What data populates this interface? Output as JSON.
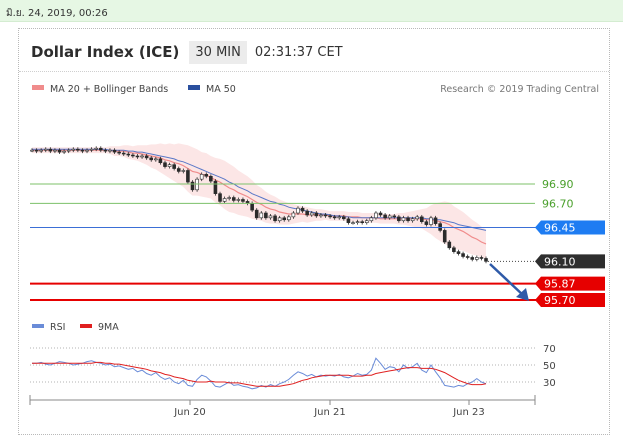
{
  "topbar": {
    "date": "มิ.ย. 24, 2019, 00:26"
  },
  "header": {
    "title": "Dollar Index (ICE)",
    "timeframe": "30 MIN",
    "clock": "02:31:37 CET"
  },
  "legend": {
    "ma20": "MA 20 + Bollinger Bands",
    "ma50": "MA 50",
    "credit": "Research © 2019 Trading Central"
  },
  "rsi_legend": {
    "rsi": "RSI",
    "ma9": "9MA"
  },
  "colors": {
    "ma20": "#f08c8c",
    "ma50": "#5a78c8",
    "rsi": "#6a8cd8",
    "ma9": "#e02020",
    "resistance": "#7cc16a",
    "support": "#e60000",
    "pivot": "#3b6fd6",
    "candle": "#2a2a2a"
  },
  "chart_data": [
    {
      "type": "candlestick",
      "x_ticks": [
        "Jun 20",
        "Jun 21",
        "Jun 23"
      ],
      "ylim": [
        95.55,
        97.45
      ],
      "levels": [
        {
          "value": 96.9,
          "label": "96.90",
          "kind": "resistance"
        },
        {
          "value": 96.7,
          "label": "96.70",
          "kind": "resistance"
        },
        {
          "value": 96.45,
          "label": "96.45",
          "kind": "pivot"
        },
        {
          "value": 96.1,
          "label": "96.10",
          "kind": "last"
        },
        {
          "value": 95.87,
          "label": "95.87",
          "kind": "support"
        },
        {
          "value": 95.7,
          "label": "95.70",
          "kind": "support"
        }
      ],
      "close": [
        97.25,
        97.24,
        97.25,
        97.26,
        97.24,
        97.25,
        97.23,
        97.24,
        97.25,
        97.26,
        97.25,
        97.24,
        97.25,
        97.26,
        97.27,
        97.25,
        97.24,
        97.25,
        97.23,
        97.22,
        97.21,
        97.2,
        97.19,
        97.18,
        97.19,
        97.17,
        97.15,
        97.16,
        97.12,
        97.08,
        97.1,
        97.06,
        97.03,
        97.04,
        96.92,
        96.84,
        96.95,
        97.0,
        96.98,
        96.93,
        96.8,
        96.72,
        96.75,
        96.76,
        96.73,
        96.74,
        96.72,
        96.7,
        96.63,
        96.55,
        96.6,
        96.55,
        96.57,
        96.52,
        96.55,
        96.53,
        96.56,
        96.6,
        96.65,
        96.62,
        96.58,
        96.6,
        96.57,
        96.58,
        96.57,
        96.56,
        96.55,
        96.56,
        96.54,
        96.5,
        96.5,
        96.51,
        96.5,
        96.52,
        96.55,
        96.6,
        96.58,
        96.55,
        96.57,
        96.56,
        96.52,
        96.55,
        96.52,
        96.54,
        96.56,
        96.51,
        96.48,
        96.55,
        96.49,
        96.42,
        96.3,
        96.24,
        96.2,
        96.18,
        96.15,
        96.14,
        96.12,
        96.14,
        96.13,
        96.1
      ],
      "ma20": [
        97.25,
        97.25,
        97.25,
        97.25,
        97.25,
        97.25,
        97.25,
        97.25,
        97.25,
        97.25,
        97.25,
        97.25,
        97.25,
        97.25,
        97.25,
        97.25,
        97.25,
        97.25,
        97.24,
        97.24,
        97.24,
        97.23,
        97.22,
        97.22,
        97.21,
        97.2,
        97.19,
        97.18,
        97.17,
        97.15,
        97.14,
        97.12,
        97.11,
        97.09,
        97.06,
        97.03,
        97.02,
        97.0,
        96.99,
        96.97,
        96.94,
        96.92,
        96.89,
        96.86,
        96.84,
        96.81,
        96.79,
        96.77,
        96.74,
        96.71,
        96.69,
        96.66,
        96.64,
        96.63,
        96.61,
        96.6,
        96.59,
        96.59,
        96.59,
        96.59,
        96.58,
        96.58,
        96.58,
        96.58,
        96.58,
        96.57,
        96.57,
        96.57,
        96.57,
        96.56,
        96.56,
        96.56,
        96.55,
        96.55,
        96.55,
        96.55,
        96.54,
        96.54,
        96.54,
        96.54,
        96.54,
        96.54,
        96.54,
        96.54,
        96.54,
        96.54,
        96.53,
        96.53,
        96.52,
        96.51,
        96.5,
        96.48,
        96.45,
        96.43,
        96.41,
        96.38,
        96.35,
        96.33,
        96.3,
        96.28
      ],
      "ma50": [
        97.26,
        97.26,
        97.26,
        97.26,
        97.26,
        97.26,
        97.26,
        97.26,
        97.26,
        97.26,
        97.26,
        97.26,
        97.26,
        97.26,
        97.26,
        97.26,
        97.26,
        97.25,
        97.25,
        97.25,
        97.25,
        97.24,
        97.24,
        97.23,
        97.23,
        97.22,
        97.21,
        97.2,
        97.19,
        97.18,
        97.17,
        97.16,
        97.14,
        97.13,
        97.11,
        97.09,
        97.07,
        97.05,
        97.03,
        97.01,
        96.99,
        96.97,
        96.95,
        96.92,
        96.9,
        96.87,
        96.85,
        96.83,
        96.8,
        96.78,
        96.76,
        96.74,
        96.72,
        96.71,
        96.69,
        96.68,
        96.66,
        96.65,
        96.64,
        96.63,
        96.62,
        96.61,
        96.6,
        96.59,
        96.59,
        96.58,
        96.57,
        96.57,
        96.56,
        96.56,
        96.55,
        96.55,
        96.55,
        96.55,
        96.55,
        96.55,
        96.55,
        96.55,
        96.55,
        96.55,
        96.55,
        96.55,
        96.55,
        96.55,
        96.55,
        96.55,
        96.54,
        96.54,
        96.53,
        96.53,
        96.52,
        96.51,
        96.5,
        96.48,
        96.47,
        96.46,
        96.45,
        96.44,
        96.43,
        96.42
      ],
      "bb_width": [
        0.03,
        0.03,
        0.03,
        0.03,
        0.03,
        0.03,
        0.03,
        0.03,
        0.03,
        0.03,
        0.03,
        0.03,
        0.03,
        0.03,
        0.03,
        0.03,
        0.03,
        0.04,
        0.05,
        0.05,
        0.06,
        0.07,
        0.07,
        0.08,
        0.09,
        0.1,
        0.12,
        0.13,
        0.15,
        0.16,
        0.18,
        0.19,
        0.21,
        0.22,
        0.24,
        0.25,
        0.24,
        0.23,
        0.23,
        0.22,
        0.23,
        0.24,
        0.25,
        0.25,
        0.24,
        0.23,
        0.22,
        0.21,
        0.2,
        0.18,
        0.17,
        0.16,
        0.15,
        0.14,
        0.13,
        0.12,
        0.11,
        0.1,
        0.09,
        0.08,
        0.08,
        0.07,
        0.06,
        0.06,
        0.05,
        0.05,
        0.05,
        0.05,
        0.05,
        0.05,
        0.05,
        0.05,
        0.05,
        0.05,
        0.05,
        0.05,
        0.05,
        0.05,
        0.05,
        0.05,
        0.06,
        0.06,
        0.07,
        0.08,
        0.09,
        0.1,
        0.12,
        0.15,
        0.18,
        0.2,
        0.22,
        0.23,
        0.22,
        0.21,
        0.2,
        0.19,
        0.18,
        0.17,
        0.16,
        0.15
      ]
    },
    {
      "type": "line",
      "name": "RSI",
      "y_ticks": [
        70,
        50,
        30
      ],
      "ylim": [
        15,
        75
      ],
      "rsi": [
        52,
        52,
        53,
        51,
        50,
        52,
        54,
        53,
        52,
        50,
        51,
        52,
        54,
        55,
        53,
        52,
        50,
        51,
        48,
        49,
        47,
        45,
        46,
        42,
        44,
        40,
        38,
        41,
        36,
        33,
        35,
        30,
        28,
        32,
        26,
        25,
        33,
        38,
        36,
        31,
        25,
        24,
        27,
        30,
        26,
        27,
        25,
        24,
        22,
        23,
        26,
        24,
        27,
        25,
        28,
        30,
        33,
        38,
        42,
        40,
        37,
        39,
        36,
        38,
        37,
        38,
        37,
        39,
        36,
        35,
        37,
        40,
        38,
        39,
        44,
        58,
        52,
        45,
        48,
        47,
        42,
        50,
        46,
        48,
        52,
        44,
        41,
        50,
        42,
        35,
        26,
        25,
        24,
        26,
        25,
        28,
        30,
        34,
        30,
        28
      ],
      "ma9": [
        52,
        52,
        52,
        52,
        52,
        52,
        52,
        52,
        52,
        52,
        52,
        52,
        52,
        52,
        53,
        53,
        52,
        52,
        51,
        51,
        50,
        49,
        48,
        47,
        46,
        45,
        43,
        42,
        41,
        39,
        38,
        36,
        35,
        34,
        32,
        31,
        30,
        30,
        30,
        31,
        30,
        30,
        30,
        29,
        29,
        29,
        28,
        27,
        26,
        25,
        25,
        25,
        25,
        25,
        25,
        26,
        27,
        28,
        30,
        32,
        33,
        35,
        36,
        37,
        38,
        38,
        38,
        38,
        38,
        38,
        37,
        37,
        37,
        38,
        38,
        40,
        41,
        42,
        43,
        44,
        45,
        46,
        47,
        47,
        47,
        46,
        46,
        46,
        45,
        43,
        41,
        38,
        35,
        32,
        30,
        28,
        27,
        27,
        27,
        28
      ]
    }
  ]
}
